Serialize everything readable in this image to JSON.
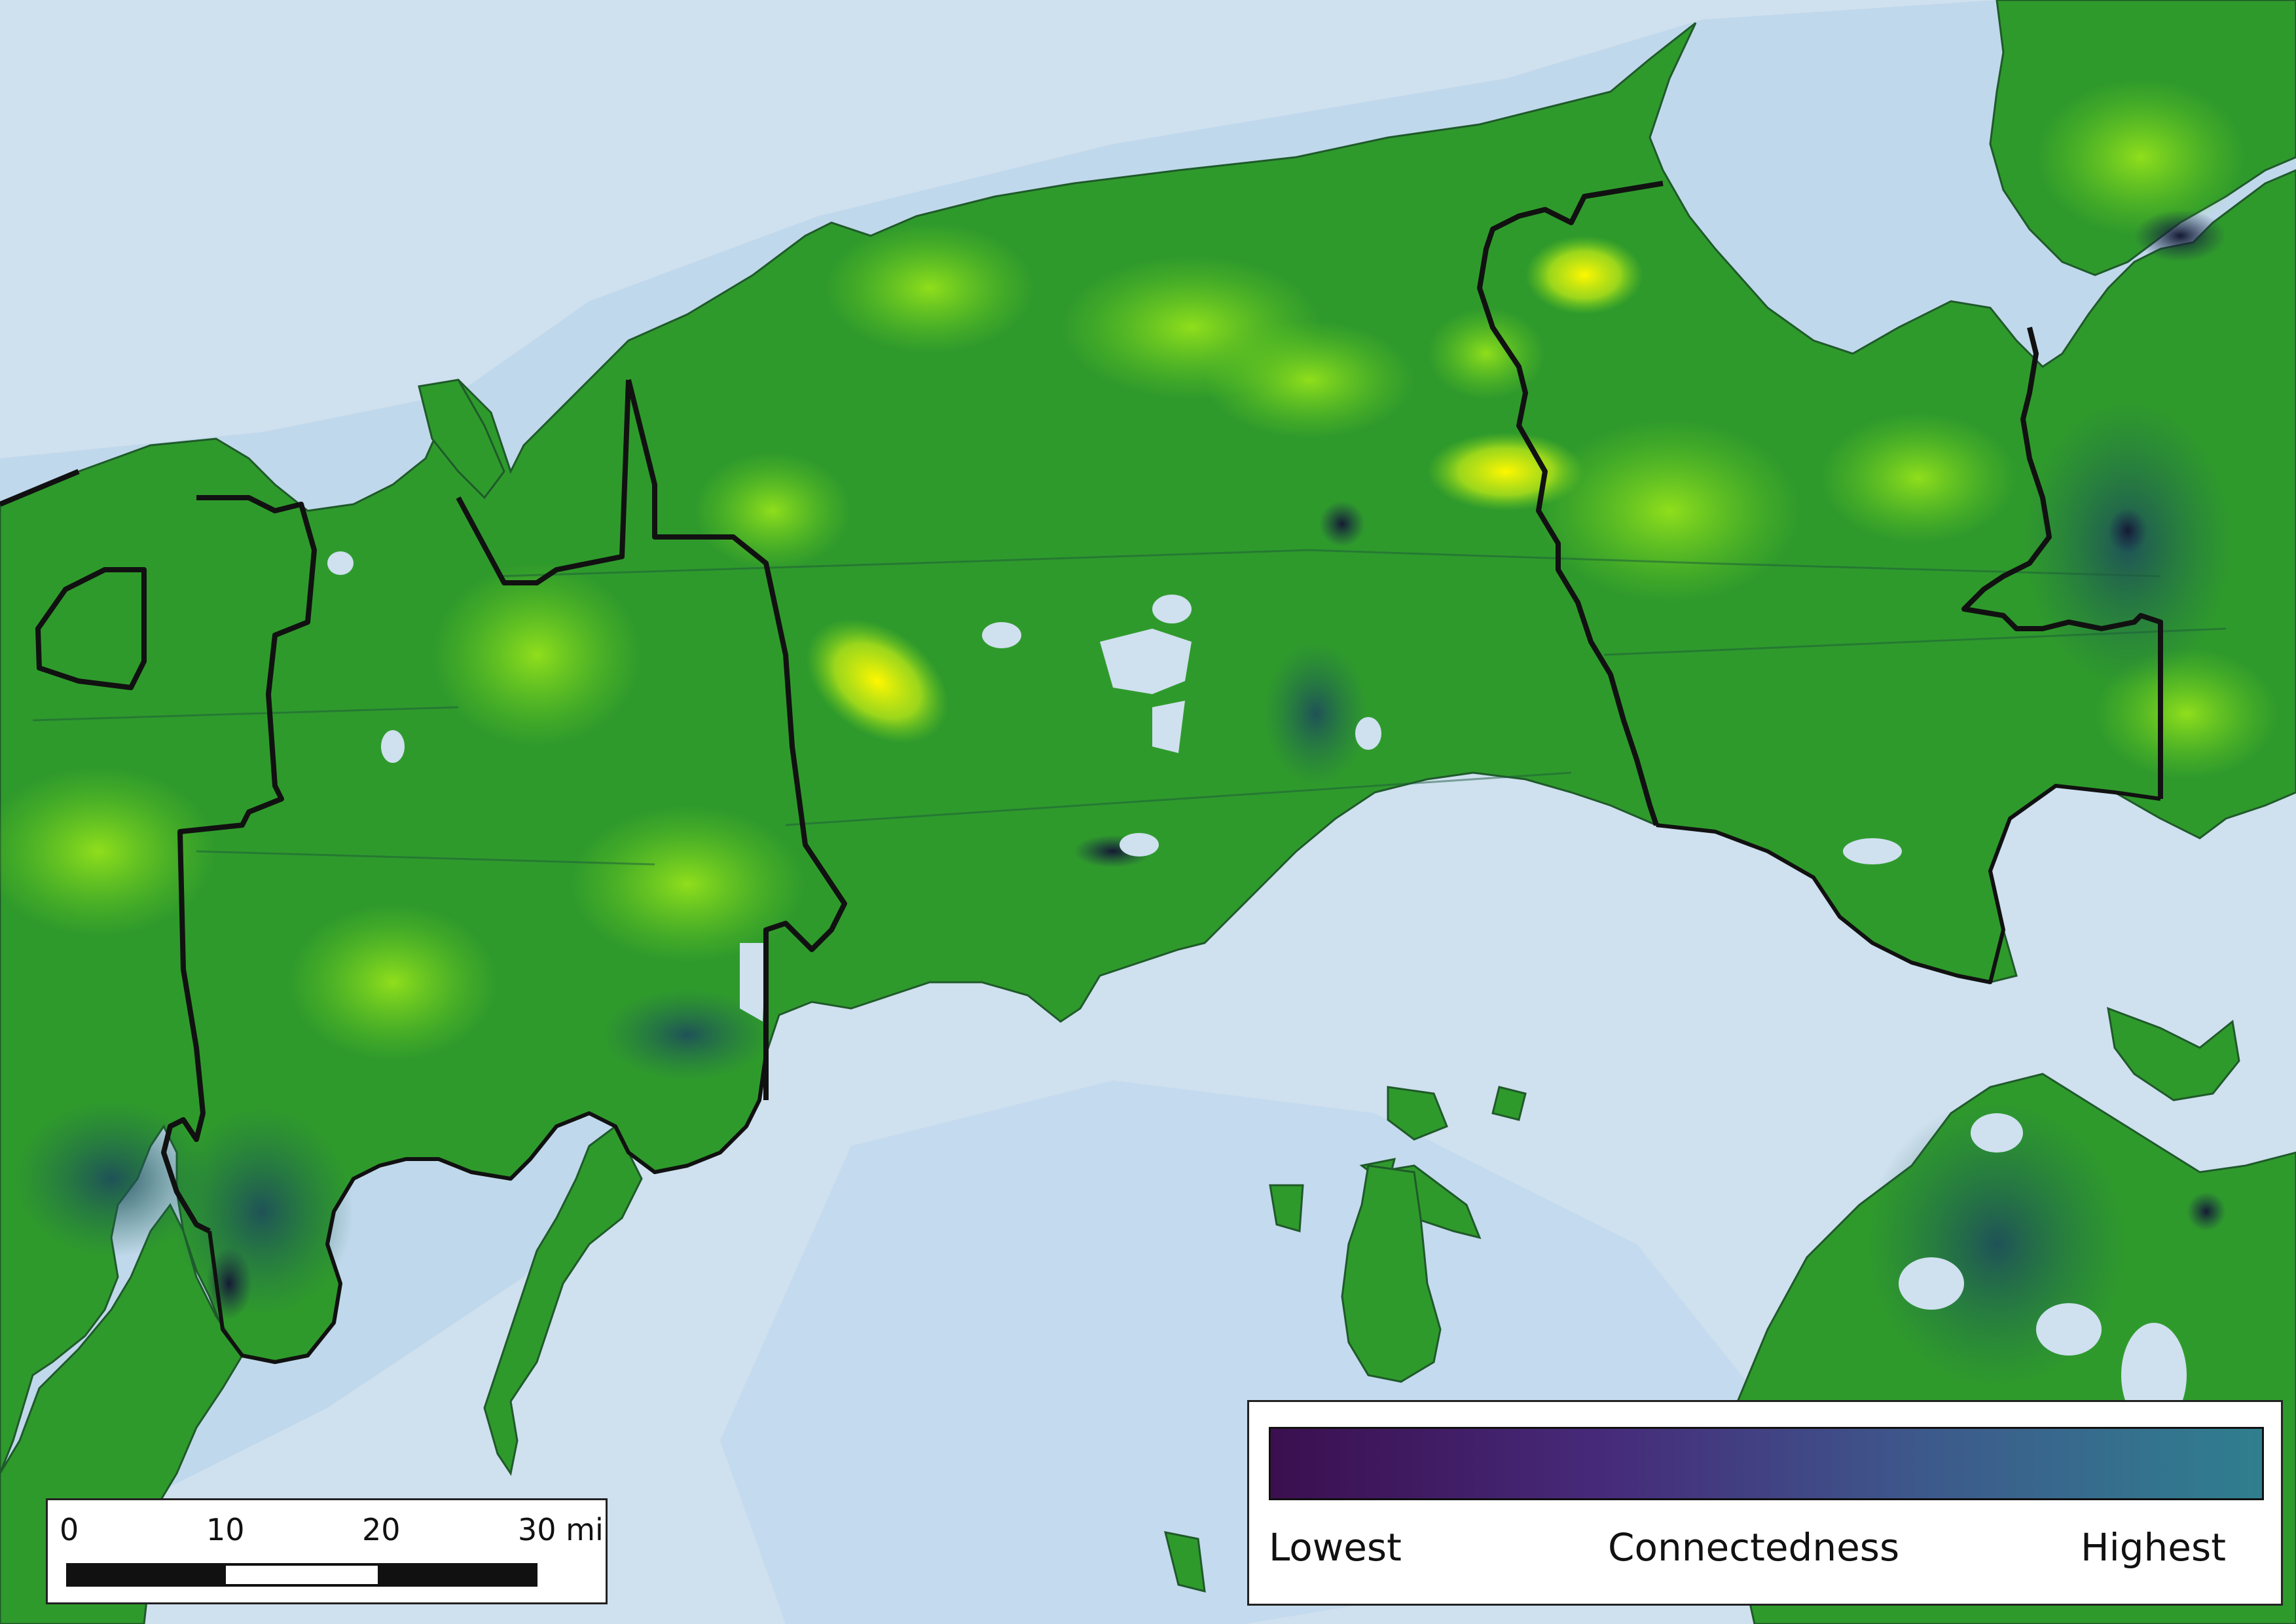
{
  "map": {
    "colors": {
      "water": "#cfe0ef",
      "water_shallow": "#b9d4ea",
      "land_base": "#2f9a2c",
      "land_mid": "#5ccd1c",
      "land_high": "#d8f514",
      "land_peak": "#fff700",
      "land_low": "#1f6b4e",
      "urban": "#1a1f3a",
      "boundary": "#111111"
    }
  },
  "scale_bar": {
    "labels": [
      "0",
      "10",
      "20",
      "30 mi"
    ]
  },
  "legend": {
    "title": "Connectedness",
    "low_label": "Lowest",
    "high_label": "Highest",
    "ramp_colors": [
      "#3b0f4f",
      "#462a7a",
      "#3d5a8c",
      "#2f7f8e"
    ]
  }
}
